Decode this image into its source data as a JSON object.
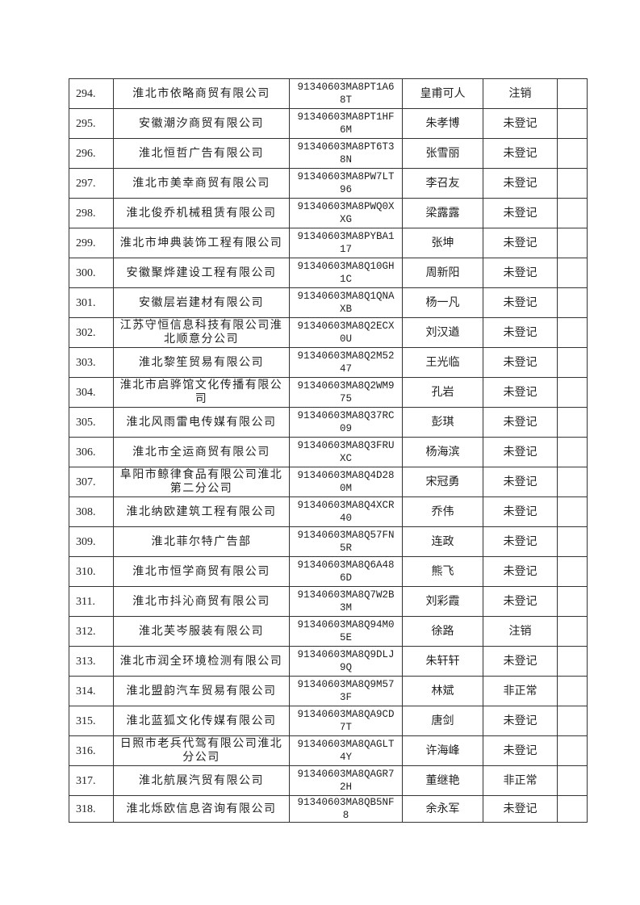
{
  "rows": [
    {
      "no": "294.",
      "name": "淮北市依略商贸有限公司",
      "code": "91340603MA8PT1A68T",
      "person": "皇甫可人",
      "status": "注销",
      "note": ""
    },
    {
      "no": "295.",
      "name": "安徽潮汐商贸有限公司",
      "code": "91340603MA8PT1HF6M",
      "person": "朱孝博",
      "status": "未登记",
      "note": ""
    },
    {
      "no": "296.",
      "name": "淮北恒哲广告有限公司",
      "code": "91340603MA8PT6T38N",
      "person": "张雪丽",
      "status": "未登记",
      "note": ""
    },
    {
      "no": "297.",
      "name": "淮北市美幸商贸有限公司",
      "code": "91340603MA8PW7LT96",
      "person": "李召友",
      "status": "未登记",
      "note": ""
    },
    {
      "no": "298.",
      "name": "淮北俊乔机械租赁有限公司",
      "code": "91340603MA8PWQ0XXG",
      "person": "梁露露",
      "status": "未登记",
      "note": ""
    },
    {
      "no": "299.",
      "name": "淮北市坤典装饰工程有限公司",
      "code": "91340603MA8PYBA117",
      "person": "张坤",
      "status": "未登记",
      "note": ""
    },
    {
      "no": "300.",
      "name": "安徽聚烨建设工程有限公司",
      "code": "91340603MA8Q10GH1C",
      "person": "周新阳",
      "status": "未登记",
      "note": ""
    },
    {
      "no": "301.",
      "name": "安徽层岩建材有限公司",
      "code": "91340603MA8Q1QNAXB",
      "person": "杨一凡",
      "status": "未登记",
      "note": ""
    },
    {
      "no": "302.",
      "name": "江苏守恒信息科技有限公司淮北顺意分公司",
      "code": "91340603MA8Q2ECX0U",
      "person": "刘汉遒",
      "status": "未登记",
      "note": ""
    },
    {
      "no": "303.",
      "name": "淮北黎笙贸易有限公司",
      "code": "91340603MA8Q2M5247",
      "person": "王光临",
      "status": "未登记",
      "note": ""
    },
    {
      "no": "304.",
      "name": "淮北市启骅馆文化传播有限公司",
      "code": "91340603MA8Q2WM975",
      "person": "孔岩",
      "status": "未登记",
      "note": ""
    },
    {
      "no": "305.",
      "name": "淮北风雨雷电传媒有限公司",
      "code": "91340603MA8Q37RC09",
      "person": "彭琪",
      "status": "未登记",
      "note": ""
    },
    {
      "no": "306.",
      "name": "淮北市全运商贸有限公司",
      "code": "91340603MA8Q3FRUXC",
      "person": "杨海滨",
      "status": "未登记",
      "note": ""
    },
    {
      "no": "307.",
      "name": "阜阳市鲸律食品有限公司淮北第二分公司",
      "code": "91340603MA8Q4D280M",
      "person": "宋冠勇",
      "status": "未登记",
      "note": ""
    },
    {
      "no": "308.",
      "name": "淮北纳欧建筑工程有限公司",
      "code": "91340603MA8Q4XCR40",
      "person": "乔伟",
      "status": "未登记",
      "note": ""
    },
    {
      "no": "309.",
      "name": "淮北菲尔特广告部",
      "code": "91340603MA8Q57FN5R",
      "person": "连政",
      "status": "未登记",
      "note": ""
    },
    {
      "no": "310.",
      "name": "淮北市恒学商贸有限公司",
      "code": "91340603MA8Q6A486D",
      "person": "熊飞",
      "status": "未登记",
      "note": ""
    },
    {
      "no": "311.",
      "name": "淮北市抖沁商贸有限公司",
      "code": "91340603MA8Q7W2B3M",
      "person": "刘彩霞",
      "status": "未登记",
      "note": ""
    },
    {
      "no": "312.",
      "name": "淮北芙岑服装有限公司",
      "code": "91340603MA8Q94M05E",
      "person": "徐路",
      "status": "注销",
      "note": ""
    },
    {
      "no": "313.",
      "name": "淮北市润全环境检测有限公司",
      "code": "91340603MA8Q9DLJ9Q",
      "person": "朱轩轩",
      "status": "未登记",
      "note": ""
    },
    {
      "no": "314.",
      "name": "淮北盟韵汽车贸易有限公司",
      "code": "91340603MA8Q9M573F",
      "person": "林斌",
      "status": "非正常",
      "note": ""
    },
    {
      "no": "315.",
      "name": "淮北蓝狐文化传媒有限公司",
      "code": "91340603MA8QA9CD7T",
      "person": "唐剑",
      "status": "未登记",
      "note": ""
    },
    {
      "no": "316.",
      "name": "日照市老兵代驾有限公司淮北分公司",
      "code": "91340603MA8QAGLT4Y",
      "person": "许海峰",
      "status": "未登记",
      "note": ""
    },
    {
      "no": "317.",
      "name": "淮北航展汽贸有限公司",
      "code": "91340603MA8QAGR72H",
      "person": "董继艳",
      "status": "非正常",
      "note": ""
    },
    {
      "no": "318.",
      "name": "淮北烁欧信息咨询有限公司",
      "code": "91340603MA8QB5NF8",
      "person": "余永军",
      "status": "未登记",
      "note": ""
    }
  ]
}
